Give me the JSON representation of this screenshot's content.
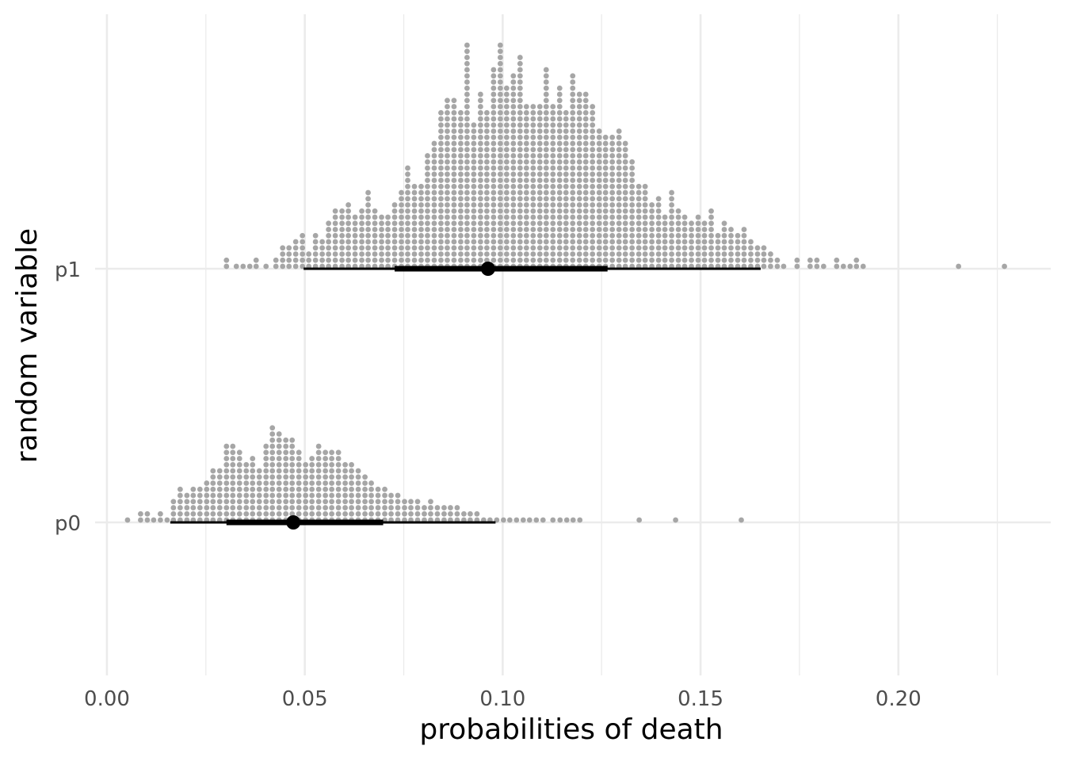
{
  "chart_data": {
    "type": "dotplot",
    "title": "",
    "xlabel": "probabilities of death",
    "ylabel": "random variable",
    "xlim": [
      -0.003,
      0.2385
    ],
    "x_ticks": [
      0.0,
      0.05,
      0.1,
      0.15,
      0.2
    ],
    "x_tick_labels": [
      "0.00",
      "0.05",
      "0.10",
      "0.15",
      "0.20"
    ],
    "x_minor_ticks": [
      0.025,
      0.075,
      0.125,
      0.175,
      0.225
    ],
    "grid": true,
    "legend": "none",
    "colors": {
      "dots": "#a6a6a6",
      "interval": "#000000",
      "grid": "#ebebeb"
    },
    "categories": [
      "p1",
      "p0"
    ],
    "series": [
      {
        "category": "p1",
        "dots": [
          [
            0.0302,
            2
          ],
          [
            0.0327,
            1
          ],
          [
            0.0344,
            1
          ],
          [
            0.0361,
            1
          ],
          [
            0.0377,
            2
          ],
          [
            0.0402,
            1
          ],
          [
            0.0427,
            2
          ],
          [
            0.0444,
            4
          ],
          [
            0.046,
            4
          ],
          [
            0.0477,
            5
          ],
          [
            0.0494,
            6
          ],
          [
            0.051,
            3
          ],
          [
            0.0527,
            6
          ],
          [
            0.0544,
            5
          ],
          [
            0.056,
            8
          ],
          [
            0.0577,
            10
          ],
          [
            0.0594,
            10
          ],
          [
            0.061,
            11
          ],
          [
            0.0627,
            9
          ],
          [
            0.0644,
            10
          ],
          [
            0.066,
            13
          ],
          [
            0.0677,
            10
          ],
          [
            0.0694,
            9
          ],
          [
            0.071,
            9
          ],
          [
            0.0727,
            11
          ],
          [
            0.0744,
            13
          ],
          [
            0.076,
            17
          ],
          [
            0.0777,
            14
          ],
          [
            0.0794,
            14
          ],
          [
            0.081,
            19
          ],
          [
            0.0827,
            21
          ],
          [
            0.0844,
            26
          ],
          [
            0.086,
            28
          ],
          [
            0.0877,
            28
          ],
          [
            0.0894,
            26
          ],
          [
            0.091,
            37
          ],
          [
            0.0927,
            24
          ],
          [
            0.0944,
            29
          ],
          [
            0.096,
            26
          ],
          [
            0.0977,
            33
          ],
          [
            0.0994,
            37
          ],
          [
            0.101,
            30
          ],
          [
            0.1027,
            32
          ],
          [
            0.1044,
            35
          ],
          [
            0.106,
            27
          ],
          [
            0.1077,
            27
          ],
          [
            0.1094,
            27
          ],
          [
            0.111,
            33
          ],
          [
            0.1127,
            27
          ],
          [
            0.1144,
            30
          ],
          [
            0.116,
            26
          ],
          [
            0.1177,
            32
          ],
          [
            0.1194,
            29
          ],
          [
            0.121,
            29
          ],
          [
            0.1227,
            27
          ],
          [
            0.1244,
            23
          ],
          [
            0.126,
            22
          ],
          [
            0.1277,
            22
          ],
          [
            0.1294,
            23
          ],
          [
            0.131,
            21
          ],
          [
            0.1327,
            18
          ],
          [
            0.1344,
            14
          ],
          [
            0.136,
            14
          ],
          [
            0.1377,
            11
          ],
          [
            0.1394,
            12
          ],
          [
            0.141,
            9
          ],
          [
            0.1427,
            13
          ],
          [
            0.1444,
            10
          ],
          [
            0.146,
            9
          ],
          [
            0.1477,
            8
          ],
          [
            0.1494,
            9
          ],
          [
            0.151,
            8
          ],
          [
            0.1527,
            10
          ],
          [
            0.1544,
            6
          ],
          [
            0.156,
            8
          ],
          [
            0.1577,
            7
          ],
          [
            0.1594,
            6
          ],
          [
            0.161,
            7
          ],
          [
            0.1627,
            5
          ],
          [
            0.1644,
            4
          ],
          [
            0.166,
            4
          ],
          [
            0.1677,
            3
          ],
          [
            0.1694,
            2
          ],
          [
            0.171,
            1
          ],
          [
            0.1744,
            2
          ],
          [
            0.1777,
            2
          ],
          [
            0.1794,
            2
          ],
          [
            0.1811,
            1
          ],
          [
            0.1844,
            2
          ],
          [
            0.1861,
            1
          ],
          [
            0.1878,
            1
          ],
          [
            0.1894,
            2
          ],
          [
            0.1911,
            1
          ],
          [
            0.2152,
            1
          ],
          [
            0.2268,
            1
          ]
        ],
        "point": 0.0963,
        "interval_66": [
          0.0727,
          0.1265
        ],
        "interval_95": [
          0.0497,
          0.1652
        ]
      },
      {
        "category": "p0",
        "dots": [
          [
            0.0052,
            1
          ],
          [
            0.0085,
            2
          ],
          [
            0.0102,
            2
          ],
          [
            0.0118,
            1
          ],
          [
            0.0135,
            2
          ],
          [
            0.0152,
            1
          ],
          [
            0.0168,
            4
          ],
          [
            0.0185,
            6
          ],
          [
            0.0202,
            5
          ],
          [
            0.0218,
            6
          ],
          [
            0.0235,
            6
          ],
          [
            0.0252,
            7
          ],
          [
            0.0268,
            9
          ],
          [
            0.0285,
            9
          ],
          [
            0.0302,
            13
          ],
          [
            0.0318,
            13
          ],
          [
            0.0335,
            12
          ],
          [
            0.0352,
            10
          ],
          [
            0.0368,
            11
          ],
          [
            0.0385,
            9
          ],
          [
            0.0402,
            13
          ],
          [
            0.0418,
            16
          ],
          [
            0.0435,
            15
          ],
          [
            0.0452,
            14
          ],
          [
            0.0468,
            14
          ],
          [
            0.0485,
            12
          ],
          [
            0.0502,
            10
          ],
          [
            0.0518,
            11
          ],
          [
            0.0535,
            13
          ],
          [
            0.0552,
            12
          ],
          [
            0.0568,
            12
          ],
          [
            0.0585,
            12
          ],
          [
            0.0602,
            10
          ],
          [
            0.0618,
            10
          ],
          [
            0.0635,
            9
          ],
          [
            0.0652,
            8
          ],
          [
            0.0668,
            7
          ],
          [
            0.0685,
            6
          ],
          [
            0.0702,
            6
          ],
          [
            0.0718,
            5
          ],
          [
            0.0735,
            5
          ],
          [
            0.0752,
            4
          ],
          [
            0.0768,
            4
          ],
          [
            0.0785,
            4
          ],
          [
            0.0802,
            3
          ],
          [
            0.0818,
            4
          ],
          [
            0.0835,
            3
          ],
          [
            0.0852,
            3
          ],
          [
            0.0868,
            3
          ],
          [
            0.0885,
            3
          ],
          [
            0.0902,
            2
          ],
          [
            0.0918,
            2
          ],
          [
            0.0935,
            2
          ],
          [
            0.0952,
            1
          ],
          [
            0.0968,
            1
          ],
          [
            0.0985,
            1
          ],
          [
            0.1002,
            1
          ],
          [
            0.1018,
            1
          ],
          [
            0.1035,
            1
          ],
          [
            0.1052,
            1
          ],
          [
            0.1068,
            1
          ],
          [
            0.1085,
            1
          ],
          [
            0.1102,
            1
          ],
          [
            0.1127,
            1
          ],
          [
            0.1145,
            1
          ],
          [
            0.1162,
            1
          ],
          [
            0.1178,
            1
          ],
          [
            0.1195,
            1
          ],
          [
            0.1345,
            1
          ],
          [
            0.1437,
            1
          ],
          [
            0.1603,
            1
          ]
        ],
        "point": 0.0471,
        "interval_66": [
          0.0302,
          0.0698
        ],
        "interval_95": [
          0.016,
          0.0982
        ]
      }
    ]
  }
}
